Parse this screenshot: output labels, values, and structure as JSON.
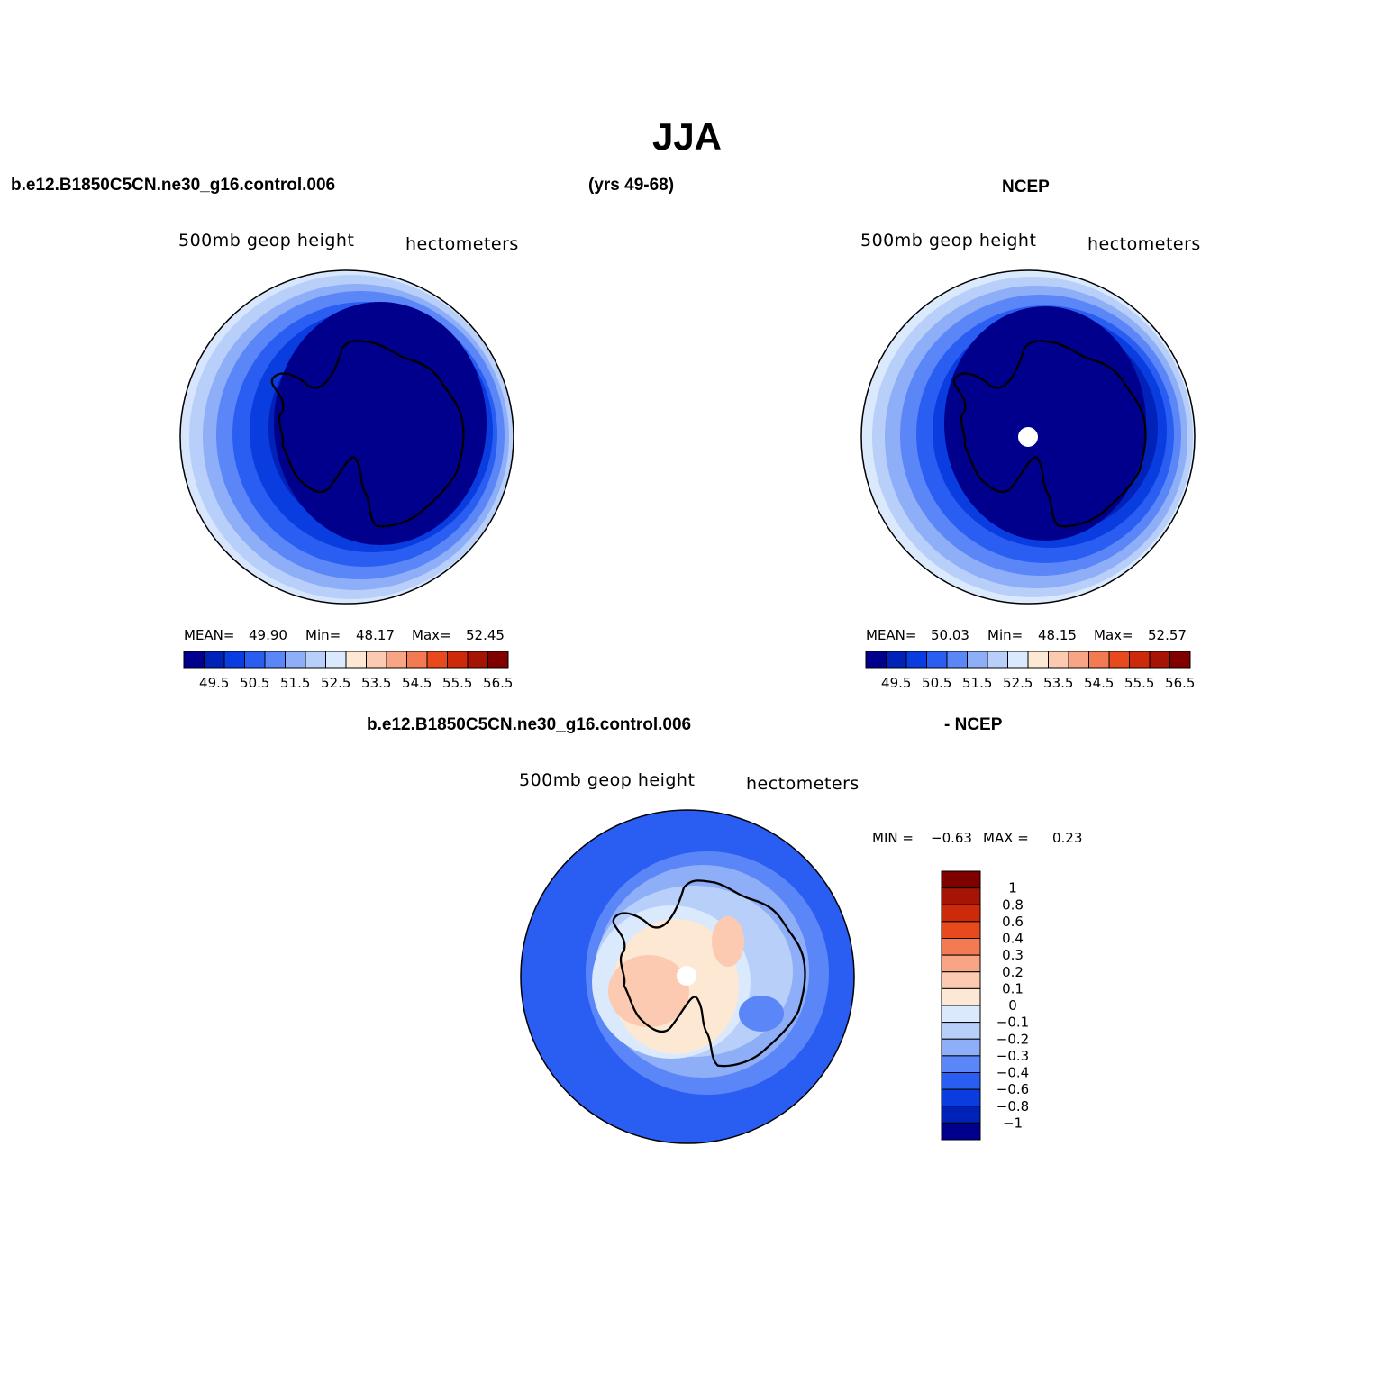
{
  "title": "JJA",
  "top_headers": {
    "case_name": "b.e12.B1850C5CN.ne30_g16.control.006",
    "years": "(yrs 49-68)",
    "obs_name": "NCEP"
  },
  "diff_header": {
    "case_name": "b.e12.B1850C5CN.ne30_g16.control.006",
    "obs_name": "- NCEP"
  },
  "panels": {
    "model": {
      "variable": "500mb  geop  height",
      "units": "hectometers",
      "mean_label": "MEAN=",
      "mean": "49.90",
      "min_label": "Min=",
      "min": "48.17",
      "max_label": "Max=",
      "max": "52.45"
    },
    "obs": {
      "variable": "500mb  geop  height",
      "units": "hectometers",
      "mean_label": "MEAN=",
      "mean": "50.03",
      "min_label": "Min=",
      "min": "48.15",
      "max_label": "Max=",
      "max": "52.57"
    },
    "diff": {
      "variable": "500mb  geop  height",
      "units": "hectometers",
      "min_label": "MIN =",
      "min": "−0.63",
      "max_label": "MAX =",
      "max": "0.23"
    }
  },
  "chart_data": [
    {
      "type": "heatmap",
      "projection": "south-polar-stereographic",
      "colorbar_ticks": [
        "49.5",
        "50.5",
        "51.5",
        "52.5",
        "53.5",
        "54.5",
        "55.5",
        "56.5"
      ],
      "colorbar_colors": [
        "#00008c",
        "#0022b8",
        "#0a3de0",
        "#2a5ef2",
        "#5b86f8",
        "#8eaef8",
        "#b8cffa",
        "#dbe9fc",
        "#fde8d4",
        "#fccab0",
        "#f8a586",
        "#f47a54",
        "#e84a1e",
        "#cc2a0a",
        "#a61405",
        "#800000"
      ]
    },
    {
      "type": "heatmap",
      "projection": "south-polar-stereographic",
      "colorbar_ticks": [
        "49.5",
        "50.5",
        "51.5",
        "52.5",
        "53.5",
        "54.5",
        "55.5",
        "56.5"
      ],
      "colorbar_colors": [
        "#00008c",
        "#0022b8",
        "#0a3de0",
        "#2a5ef2",
        "#5b86f8",
        "#8eaef8",
        "#b8cffa",
        "#dbe9fc",
        "#fde8d4",
        "#fccab0",
        "#f8a586",
        "#f47a54",
        "#e84a1e",
        "#cc2a0a",
        "#a61405",
        "#800000"
      ]
    },
    {
      "type": "heatmap",
      "projection": "south-polar-stereographic",
      "colorbar_ticks": [
        "1",
        "0.8",
        "0.6",
        "0.4",
        "0.3",
        "0.2",
        "0.1",
        "0",
        "−0.1",
        "−0.2",
        "−0.3",
        "−0.4",
        "−0.6",
        "−0.8",
        "−1"
      ],
      "colorbar_colors": [
        "#800000",
        "#a61405",
        "#cc2a0a",
        "#e84a1e",
        "#f47a54",
        "#f8a586",
        "#fccab0",
        "#fde8d4",
        "#dbe9fc",
        "#b8cffa",
        "#8eaef8",
        "#5b86f8",
        "#2a5ef2",
        "#0a3de0",
        "#0022b8",
        "#00008c"
      ]
    }
  ]
}
